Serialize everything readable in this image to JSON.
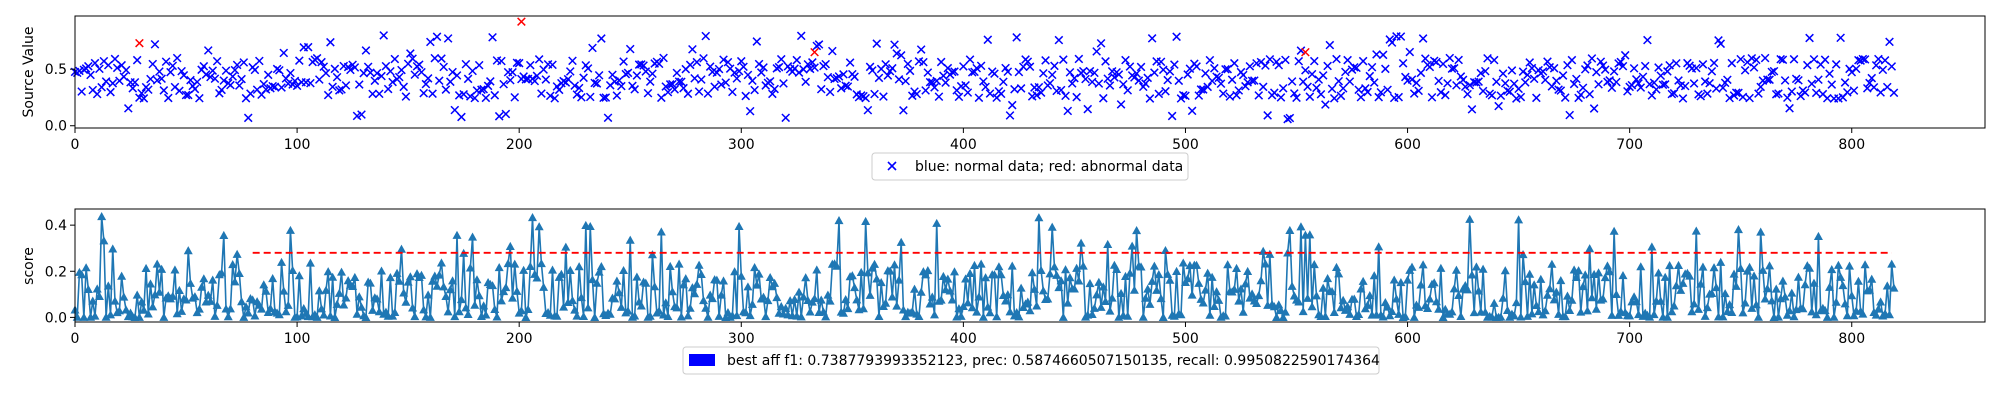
{
  "chart_data": [
    {
      "type": "scatter",
      "ylabel": "Source Value",
      "xlim": [
        0,
        860
      ],
      "ylim": [
        -0.02,
        0.97
      ],
      "xticks": [
        "0",
        "100",
        "200",
        "300",
        "400",
        "500",
        "600",
        "700",
        "800"
      ],
      "yticks": [
        "0.0",
        "0.5"
      ],
      "grid": false,
      "legend_placement": "bottom-center",
      "legend": "blue: normal data; red: abnormal data",
      "series": [
        {
          "color": "#0000ff",
          "marker": "x",
          "n_points": 820,
          "y_range": [
            0.0,
            0.82
          ]
        },
        {
          "color": "#ff0000",
          "marker": "x",
          "points": [
            [
              29,
              0.73
            ],
            [
              201,
              0.92
            ],
            [
              333,
              0.65
            ],
            [
              554,
              0.65
            ]
          ]
        }
      ]
    },
    {
      "type": "line",
      "ylabel": "score",
      "xlim": [
        0,
        860
      ],
      "ylim": [
        -0.02,
        0.47
      ],
      "xticks": [
        "0",
        "100",
        "200",
        "300",
        "400",
        "500",
        "600",
        "700",
        "800"
      ],
      "yticks": [
        "0.0",
        "0.2",
        "0.4"
      ],
      "grid": false,
      "threshold": {
        "y": 0.28,
        "x_range": [
          80,
          818
        ],
        "color": "#ff0000",
        "style": "dashed"
      },
      "series": [
        {
          "color": "#1f77b4",
          "marker": "triangle-up",
          "n_points": 820,
          "y_range": [
            0.0,
            0.45
          ]
        }
      ],
      "legend_placement": "bottom-center",
      "legend": "best aff f1: 0.7387793993352123, prec: 0.5874660507150135, recall: 0.9950822590174364",
      "legend_swatch_color": "#0000ff"
    }
  ]
}
